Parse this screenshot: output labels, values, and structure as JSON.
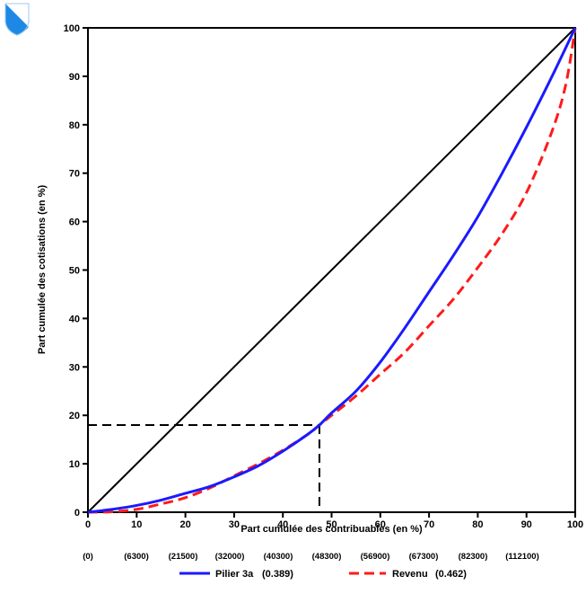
{
  "colors": {
    "pilier": "#1a1aff",
    "revenu": "#ff1a1a",
    "axis": "#000000",
    "background": "#ffffff",
    "logo_blue": "#1e88e5"
  },
  "icons": {
    "logo": "canton-shield-icon"
  },
  "chart_data": {
    "type": "line",
    "title": "",
    "xlabel": "Part cumulée des contribuables (en %)",
    "ylabel": "Part cumulée des cotisations (en %)",
    "xlim": [
      0,
      100
    ],
    "ylim": [
      0,
      100
    ],
    "grid": false,
    "legend_position": "bottom",
    "x_ticks": [
      "0",
      "10",
      "20",
      "30",
      "40",
      "50",
      "60",
      "70",
      "80",
      "90",
      "100"
    ],
    "y_ticks": [
      "0",
      "10",
      "20",
      "30",
      "40",
      "50",
      "60",
      "70",
      "80",
      "90",
      "100"
    ],
    "income_tick_labels": [
      "(0)",
      "(6300)",
      "(21500)",
      "(32000)",
      "(40300)",
      "(48300)",
      "(56900)",
      "(67300)",
      "(82300)",
      "(112100)"
    ],
    "equality_line": {
      "x": [
        0,
        100
      ],
      "y": [
        0,
        100
      ]
    },
    "series": [
      {
        "name": "Pilier 3a",
        "legend_label": "Pilier 3a",
        "coefficient": "(0.389)",
        "style": "solid",
        "x": [
          0,
          5,
          10,
          15,
          20,
          25,
          30,
          35,
          40,
          45,
          47.5,
          50,
          55,
          60,
          65,
          70,
          75,
          80,
          85,
          90,
          95,
          100
        ],
        "y": [
          0,
          0.6,
          1.4,
          2.5,
          3.9,
          5.3,
          7.3,
          9.6,
          12.6,
          16.0,
          18.0,
          20.5,
          25.0,
          31.0,
          38.0,
          45.5,
          53.0,
          61.0,
          70.0,
          79.5,
          89.5,
          100
        ]
      },
      {
        "name": "Revenu",
        "legend_label": "Revenu",
        "coefficient": "(0.462)",
        "style": "dashed",
        "x": [
          0,
          5,
          10,
          15,
          20,
          25,
          30,
          35,
          40,
          45,
          47.5,
          50,
          55,
          60,
          65,
          70,
          75,
          80,
          85,
          90,
          95,
          98,
          100
        ],
        "y": [
          0,
          0.1,
          0.6,
          1.7,
          3.0,
          5.0,
          7.5,
          10.0,
          12.8,
          16.0,
          18.0,
          20.0,
          24.0,
          28.5,
          33.0,
          38.5,
          44.0,
          50.5,
          57.5,
          66.0,
          78.0,
          88.0,
          100
        ]
      }
    ],
    "reference_point": {
      "x": 47.5,
      "y": 18
    }
  }
}
